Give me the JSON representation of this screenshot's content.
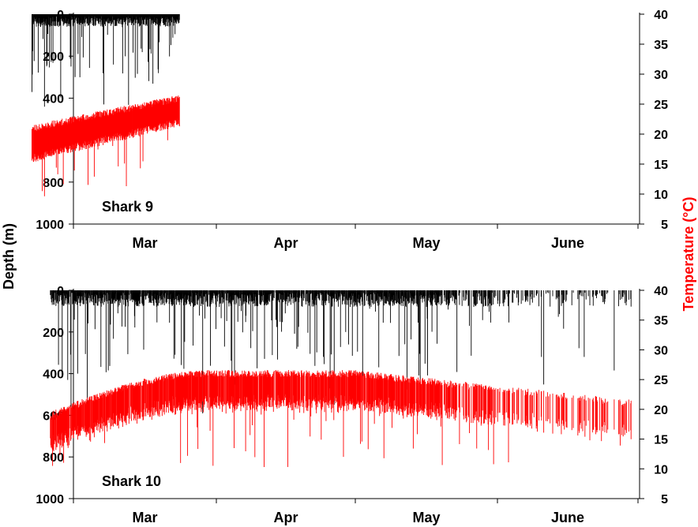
{
  "figure": {
    "ylabel_left": "Depth (m)",
    "ylabel_right": "Temperature (°C)",
    "colors": {
      "depth": "#000000",
      "temperature": "#ff0000",
      "axis": "#000000",
      "right_label": "#ff0000"
    }
  },
  "chart_data": [
    {
      "type": "line",
      "panel_label": "Shark 9",
      "xaxis": {
        "type": "date",
        "tick_dates": [
          "Mar 1",
          "Apr 1",
          "May 1",
          "Jun 1",
          "Jul 1"
        ],
        "month_labels": [
          "Mar",
          "Apr",
          "May",
          "June"
        ]
      },
      "y_left": {
        "label": "Depth (m)",
        "lim": [
          0,
          1000
        ],
        "inverted": true,
        "ticks": [
          "0",
          "200",
          "400",
          "600",
          "800",
          "1000"
        ]
      },
      "y_right": {
        "label": "Temperature (°C)",
        "lim": [
          5,
          40
        ],
        "ticks": [
          "5",
          "10",
          "15",
          "20",
          "25",
          "30",
          "35",
          "40"
        ]
      },
      "date_range": [
        "Feb 20",
        "Mar 24"
      ],
      "series": [
        {
          "name": "Depth",
          "color": "#000000",
          "typical_depth_m": [
            0,
            60
          ],
          "max_depth_m": 455
        },
        {
          "name": "Temperature",
          "color": "#ff0000",
          "temp_start_c": [
            21,
            16
          ],
          "temp_end_c": [
            26,
            22
          ],
          "min_temp_c": 9.3
        }
      ]
    },
    {
      "type": "line",
      "panel_label": "Shark 10",
      "xaxis": {
        "type": "date",
        "tick_dates": [
          "Mar 1",
          "Apr 1",
          "May 1",
          "Jun 1",
          "Jul 1"
        ],
        "month_labels": [
          "Mar",
          "Apr",
          "May",
          "June"
        ]
      },
      "y_left": {
        "label": "Depth (m)",
        "lim": [
          0,
          1000
        ],
        "inverted": true,
        "ticks": [
          "0",
          "200",
          "400",
          "600",
          "800",
          "1000"
        ]
      },
      "y_right": {
        "label": "Temperature (°C)",
        "lim": [
          5,
          40
        ],
        "ticks": [
          "5",
          "10",
          "15",
          "20",
          "25",
          "30",
          "35",
          "40"
        ]
      },
      "date_range": [
        "Feb 24",
        "Jun 30"
      ],
      "series": [
        {
          "name": "Depth",
          "color": "#000000",
          "typical_depth_m": [
            0,
            80
          ],
          "max_depth_m": 600
        },
        {
          "name": "Temperature",
          "color": "#ff0000",
          "typical_temp_c": [
            19,
            26
          ],
          "min_temp_c": 10.2
        }
      ]
    }
  ]
}
